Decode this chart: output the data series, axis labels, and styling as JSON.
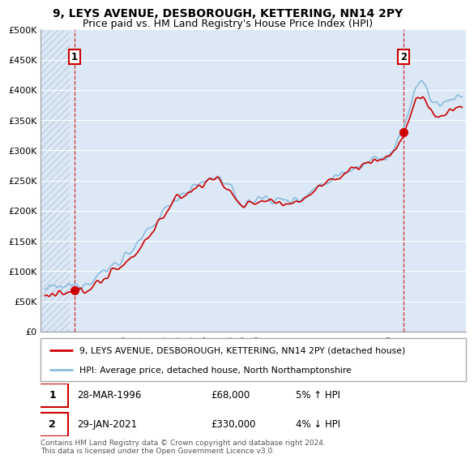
{
  "title": "9, LEYS AVENUE, DESBOROUGH, KETTERING, NN14 2PY",
  "subtitle": "Price paid vs. HM Land Registry's House Price Index (HPI)",
  "ylim": [
    0,
    500000
  ],
  "yticks": [
    0,
    50000,
    100000,
    150000,
    200000,
    250000,
    300000,
    350000,
    400000,
    450000,
    500000
  ],
  "ytick_labels": [
    "£0",
    "£50K",
    "£100K",
    "£150K",
    "£200K",
    "£250K",
    "£300K",
    "£350K",
    "£400K",
    "£450K",
    "£500K"
  ],
  "xlim_start": 1993.7,
  "xlim_end": 2025.8,
  "xticks": [
    1994,
    1995,
    1996,
    1997,
    1998,
    1999,
    2000,
    2001,
    2002,
    2003,
    2004,
    2005,
    2006,
    2007,
    2008,
    2009,
    2010,
    2011,
    2012,
    2013,
    2014,
    2015,
    2016,
    2017,
    2018,
    2019,
    2020,
    2021,
    2022,
    2023,
    2024,
    2025
  ],
  "background_color": "#ffffff",
  "plot_bg_color": "#dce8f5",
  "hatch_region_end": 1995.9,
  "hatch_color": "#c0d0e0",
  "grid_color": "#ffffff",
  "red_line_color": "#cc0000",
  "blue_line_color": "#88bbdd",
  "sale1_x": 1996.23,
  "sale1_y": 68000,
  "sale2_x": 2021.08,
  "sale2_y": 330000,
  "legend_label1": "9, LEYS AVENUE, DESBOROUGH, KETTERING, NN14 2PY (detached house)",
  "legend_label2": "HPI: Average price, detached house, North Northamptonshire",
  "annotation1_label": "1",
  "annotation1_date": "28-MAR-1996",
  "annotation1_price": "£68,000",
  "annotation1_hpi": "5% ↑ HPI",
  "annotation2_label": "2",
  "annotation2_date": "29-JAN-2021",
  "annotation2_price": "£330,000",
  "annotation2_hpi": "4% ↓ HPI",
  "footer": "Contains HM Land Registry data © Crown copyright and database right 2024.\nThis data is licensed under the Open Government Licence v3.0.",
  "title_fontsize": 10,
  "subtitle_fontsize": 9
}
